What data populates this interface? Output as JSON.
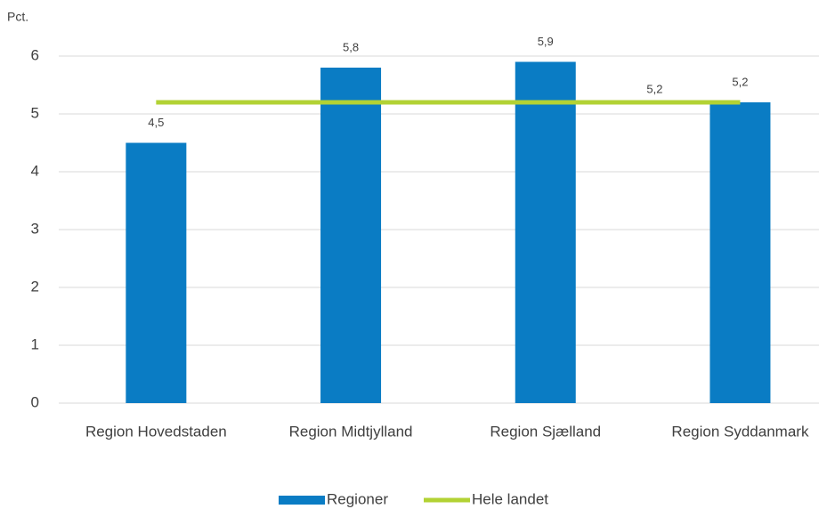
{
  "chart_data": {
    "type": "bar",
    "y_label": "Pct.",
    "categories": [
      "Region Hovedstaden",
      "Region Midtjylland",
      "Region Sjælland",
      "Region Syddanmark"
    ],
    "series": [
      {
        "name": "Regioner",
        "type": "bar",
        "color": "#0a7cc4",
        "values": [
          4.5,
          5.8,
          5.9,
          5.2
        ],
        "value_labels": [
          "4,5",
          "5,8",
          "5,9",
          "5,2"
        ]
      },
      {
        "name": "Hele landet",
        "type": "line",
        "color": "#b2d234",
        "values": [
          5.2,
          5.2,
          5.2,
          5.2
        ],
        "value_labels": [
          null,
          null,
          null,
          "5,2"
        ]
      }
    ],
    "ylim": [
      0,
      6
    ],
    "yticks": [
      0,
      1,
      2,
      3,
      4,
      5,
      6
    ],
    "grid": true,
    "legend": "bottom"
  }
}
